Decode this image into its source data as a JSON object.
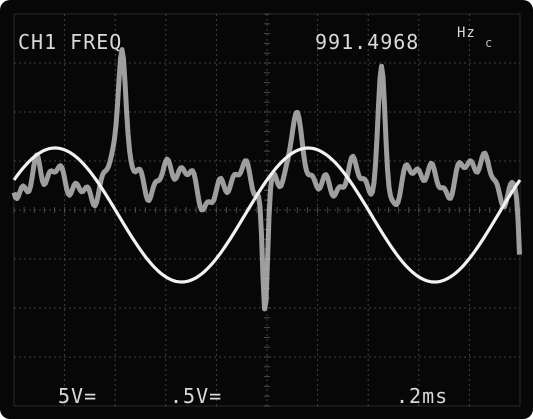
{
  "display": {
    "top_left": "CH1 FREQ",
    "frequency": "991.4968",
    "frequency_unit": "Hz",
    "freq_marker": "c",
    "ch1_volts_div": "5V=",
    "ch2_volts_div": ".5V=",
    "time_div": ".2ms"
  },
  "colors": {
    "screen": "#070707",
    "grid": "#5a5a5a",
    "ch1_trace": "#f2f2f2",
    "ch2_trace": "#b8b8b8",
    "text": "#d9d9d9"
  },
  "chart_data": {
    "type": "line",
    "grid": true,
    "series": [
      {
        "shape": "sine",
        "cycles": 2,
        "amplitude_div": 2.0
      },
      {
        "shape": "noisy waveform with positive spikes near divisions 1 and 3.6 and negative spikes near divisions 2.6 and 5.1"
      }
    ]
  }
}
